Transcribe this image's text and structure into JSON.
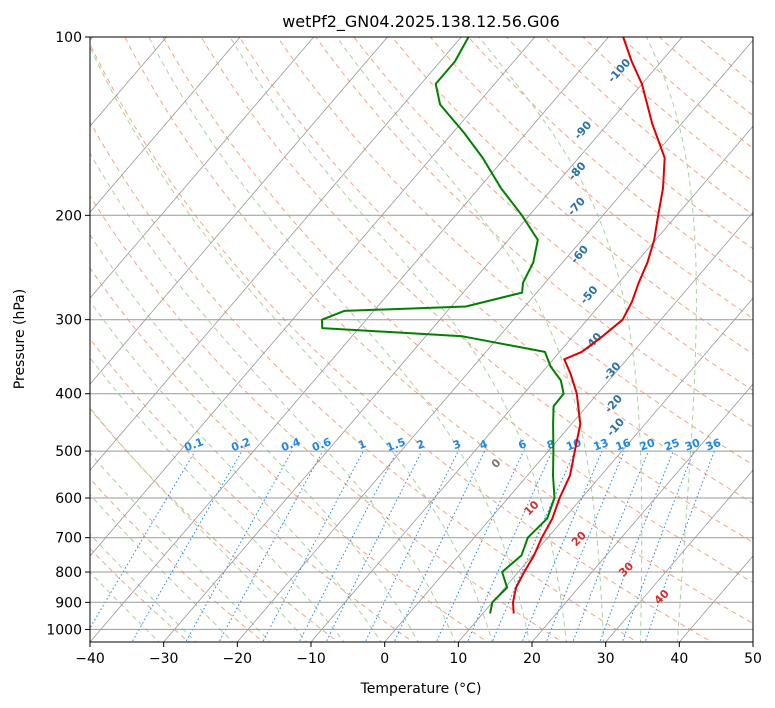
{
  "chart_data": {
    "type": "line",
    "title": "wetPf2_GN04.2025.138.12.56.G06",
    "xlabel": "Temperature (°C)",
    "ylabel": "Pressure (hPa)",
    "xlim": [
      -40,
      50
    ],
    "ylim": [
      1050,
      100
    ],
    "y_scale": "log",
    "x_ticks": [
      "−40",
      "−30",
      "−20",
      "−10",
      "0",
      "10",
      "20",
      "30",
      "40",
      "50"
    ],
    "y_ticks": [
      "100",
      "200",
      "300",
      "400",
      "500",
      "600",
      "700",
      "800",
      "900",
      "1000"
    ],
    "grid": true,
    "colors": {
      "temperature": "#e00000",
      "dewpoint": "#008000",
      "isotherm": "#999999",
      "dry_adiabat": "#f4a582",
      "moist_adiabat": "#a6d3a0",
      "mixing_ratio": "#1e88e5",
      "moist_label": "#2a6fa6",
      "dry_label": "#d32f2f"
    },
    "series": [
      {
        "points": [
          {
            "p": 940,
            "t": 14.2
          },
          {
            "p": 900,
            "t": 12.8
          },
          {
            "p": 850,
            "t": 11.5
          },
          {
            "p": 800,
            "t": 10.8
          },
          {
            "p": 750,
            "t": 10.2
          },
          {
            "p": 700,
            "t": 9.2
          },
          {
            "p": 650,
            "t": 8.4
          },
          {
            "p": 600,
            "t": 7.0
          },
          {
            "p": 550,
            "t": 5.8
          },
          {
            "p": 500,
            "t": 3.6
          },
          {
            "p": 450,
            "t": 1.2
          },
          {
            "p": 400,
            "t": -2.8
          },
          {
            "p": 370,
            "t": -6.0
          },
          {
            "p": 350,
            "t": -8.5
          },
          {
            "p": 340,
            "t": -7.0
          },
          {
            "p": 320,
            "t": -6.0
          },
          {
            "p": 300,
            "t": -5.2
          },
          {
            "p": 280,
            "t": -6.0
          },
          {
            "p": 260,
            "t": -7.3
          },
          {
            "p": 240,
            "t": -8.5
          },
          {
            "p": 220,
            "t": -10.2
          },
          {
            "p": 200,
            "t": -12.5
          },
          {
            "p": 180,
            "t": -15.0
          },
          {
            "p": 160,
            "t": -18.3
          },
          {
            "p": 140,
            "t": -24.0
          },
          {
            "p": 120,
            "t": -30.0
          },
          {
            "p": 110,
            "t": -34.0
          },
          {
            "p": 100,
            "t": -38.0
          }
        ]
      },
      {
        "points": [
          {
            "p": 940,
            "t": 11.0
          },
          {
            "p": 900,
            "t": 10.0
          },
          {
            "p": 850,
            "t": 10.3
          },
          {
            "p": 800,
            "t": 7.8
          },
          {
            "p": 750,
            "t": 8.5
          },
          {
            "p": 700,
            "t": 7.3
          },
          {
            "p": 650,
            "t": 7.7
          },
          {
            "p": 600,
            "t": 6.3
          },
          {
            "p": 550,
            "t": 3.5
          },
          {
            "p": 500,
            "t": 0.7
          },
          {
            "p": 450,
            "t": -2.5
          },
          {
            "p": 420,
            "t": -4.5
          },
          {
            "p": 400,
            "t": -4.6
          },
          {
            "p": 380,
            "t": -6.5
          },
          {
            "p": 360,
            "t": -9.5
          },
          {
            "p": 340,
            "t": -12.0
          },
          {
            "p": 320,
            "t": -25.0
          },
          {
            "p": 310,
            "t": -45.0
          },
          {
            "p": 300,
            "t": -46.0
          },
          {
            "p": 290,
            "t": -44.0
          },
          {
            "p": 285,
            "t": -28.0
          },
          {
            "p": 270,
            "t": -22.0
          },
          {
            "p": 260,
            "t": -23.0
          },
          {
            "p": 240,
            "t": -24.0
          },
          {
            "p": 220,
            "t": -26.0
          },
          {
            "p": 200,
            "t": -31.0
          },
          {
            "p": 180,
            "t": -37.0
          },
          {
            "p": 160,
            "t": -43.0
          },
          {
            "p": 145,
            "t": -48.5
          },
          {
            "p": 130,
            "t": -55.0
          },
          {
            "p": 120,
            "t": -58.0
          },
          {
            "p": 110,
            "t": -58.0
          },
          {
            "p": 100,
            "t": -59.0
          }
        ]
      }
    ],
    "moist_adiabat_labels": [
      "-100",
      "-90",
      "-80",
      "-70",
      "-60",
      "-50",
      "-40",
      "-30",
      "-20",
      "-10"
    ],
    "mixing_ratio_labels": [
      "0.1",
      "0.2",
      "0.4",
      "0.6",
      "1",
      "1.5",
      "2",
      "3",
      "4",
      "6",
      "8",
      "10",
      "13",
      "16",
      "20",
      "25",
      "30",
      "36"
    ],
    "dry_adiabat_labels": [
      "0",
      "10",
      "20",
      "30",
      "40"
    ]
  }
}
